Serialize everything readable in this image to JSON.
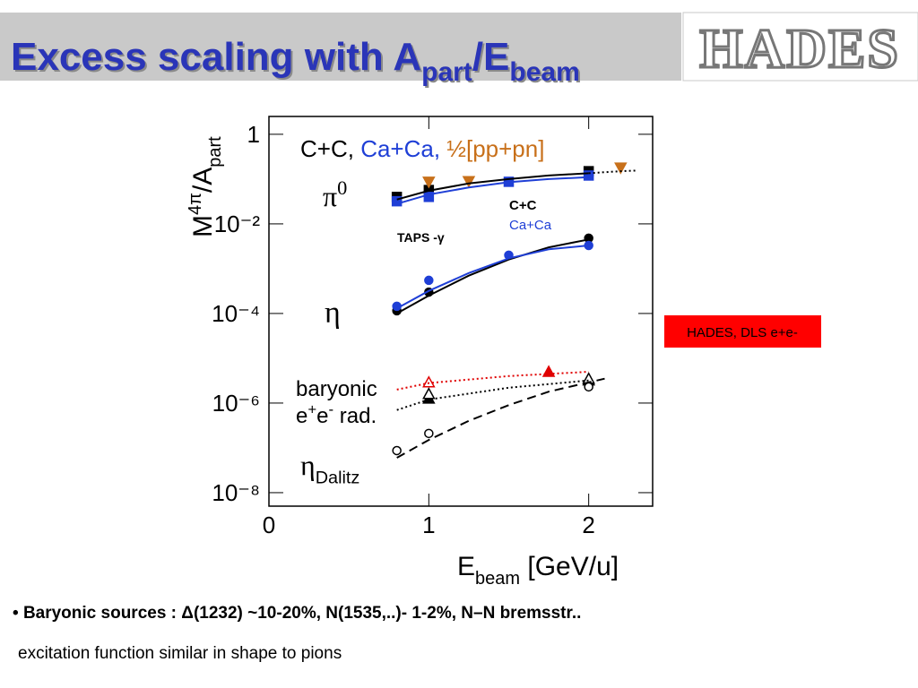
{
  "header": {
    "title_parts": [
      "Excess scaling with A",
      "part",
      "/E",
      "beam"
    ],
    "logo": "HADES"
  },
  "chart_data": {
    "type": "scatter",
    "log_y": true,
    "xlim": [
      0,
      2.4
    ],
    "ylim": [
      5e-09,
      2.5
    ],
    "xticks": [
      0,
      1,
      2
    ],
    "yticks": [
      1,
      {
        "value": 0.01,
        "label": "10⁻²"
      },
      {
        "value": 0.0001,
        "label": "10⁻⁴"
      },
      {
        "value": 1e-06,
        "label": "10⁻⁶"
      },
      {
        "value": 1e-08,
        "label": "10⁻⁸"
      }
    ],
    "x_label_parts": [
      "E",
      "beam",
      "  [GeV/u]"
    ],
    "y_label_parts": [
      "M",
      "4π",
      "/A",
      "part"
    ],
    "series": [
      {
        "x": [
          0.8,
          1,
          2
        ],
        "values": [
          0.04,
          0.057,
          0.15
        ],
        "color": "#000000",
        "marker": "square",
        "filled": true
      },
      {
        "x": [
          0.8,
          1,
          1.5,
          2
        ],
        "values": [
          0.032,
          0.04,
          0.087,
          0.12
        ],
        "color": "#1f3fd6",
        "marker": "square",
        "filled": true
      },
      {
        "x": [
          1,
          1.25,
          2.2
        ],
        "values": [
          0.087,
          0.09,
          0.18
        ],
        "color": "#c8701a",
        "marker": "triangle-down",
        "filled": true
      },
      {
        "x": [
          0.8,
          1,
          2
        ],
        "values": [
          0.000115,
          0.0003,
          0.0048
        ],
        "color": "#000000",
        "marker": "circle",
        "filled": true
      },
      {
        "x": [
          0.8,
          1,
          1.5,
          2
        ],
        "values": [
          0.000145,
          0.00055,
          0.002,
          0.0033
        ],
        "color": "#1f3fd6",
        "marker": "circle",
        "filled": true
      },
      {
        "x": [
          1,
          2
        ],
        "values": [
          1.26e-06,
          3.2e-06
        ],
        "color": "#000000",
        "marker": "triangle",
        "filled": true
      },
      {
        "x": [
          1,
          2
        ],
        "values": [
          1.6e-06,
          3.5e-06
        ],
        "color": "#000000",
        "marker": "triangle",
        "filled": false
      },
      {
        "x": [
          1
        ],
        "values": [
          2.9e-06
        ],
        "color": "#e00000",
        "marker": "triangle",
        "filled": false
      },
      {
        "x": [
          1.75
        ],
        "values": [
          5e-06
        ],
        "color": "#e00000",
        "marker": "triangle",
        "filled": true
      },
      {
        "x": [
          0.8,
          1,
          2
        ],
        "values": [
          8.7e-08,
          2.1e-07,
          2.3e-06
        ],
        "color": "#000000",
        "marker": "circle",
        "filled": false
      },
      {
        "x": [
          0.8,
          1,
          1.25,
          1.5,
          1.75,
          2
        ],
        "values": [
          0.035,
          0.055,
          0.08,
          0.1,
          0.12,
          0.135
        ],
        "color": "#000000",
        "line": "solid"
      },
      {
        "x": [
          2,
          2.2,
          2.3
        ],
        "values": [
          0.135,
          0.15,
          0.155
        ],
        "color": "#000000",
        "line": "dotted"
      },
      {
        "x": [
          0.8,
          1,
          1.25,
          1.5,
          1.75,
          2
        ],
        "values": [
          0.028,
          0.045,
          0.065,
          0.085,
          0.1,
          0.11
        ],
        "color": "#1f3fd6",
        "line": "solid"
      },
      {
        "x": [
          0.8,
          1,
          1.25,
          1.5,
          1.75,
          2
        ],
        "values": [
          0.0001,
          0.00025,
          0.0007,
          0.0016,
          0.003,
          0.0045
        ],
        "color": "#000000",
        "line": "solid"
      },
      {
        "x": [
          0.8,
          1,
          1.25,
          1.5,
          1.75,
          2
        ],
        "values": [
          0.00013,
          0.00032,
          0.0008,
          0.0017,
          0.0027,
          0.0033
        ],
        "color": "#1f3fd6",
        "line": "solid"
      },
      {
        "x": [
          0.8,
          1,
          1.5,
          2
        ],
        "values": [
          2e-06,
          2.8e-06,
          4e-06,
          5e-06
        ],
        "color": "#e00000",
        "line": "dotted"
      },
      {
        "x": [
          0.8,
          1,
          1.5,
          2
        ],
        "values": [
          7e-07,
          1.2e-06,
          2.2e-06,
          3.2e-06
        ],
        "color": "#000000",
        "line": "dotted"
      },
      {
        "x": [
          0.8,
          1,
          1.25,
          1.5,
          1.75,
          2.1
        ],
        "values": [
          6e-08,
          1.5e-07,
          4e-07,
          9e-07,
          1.8e-06,
          3.5e-06
        ],
        "color": "#000000",
        "line": "dashed"
      }
    ],
    "annotations": [
      {
        "segments": [
          {
            "text": "C+C, ",
            "color": "#000000"
          },
          {
            "text": "Ca+Ca, ",
            "color": "#1f3fd6"
          },
          {
            "text": "½[pp+pn]",
            "color": "#c8701a"
          }
        ]
      },
      {
        "segments": [
          {
            "text": "π"
          },
          {
            "text": "0",
            "shift": "super"
          }
        ],
        "serif": true
      },
      {
        "segments": [
          {
            "text": "C+C"
          }
        ],
        "bold": true
      },
      {
        "segments": [
          {
            "text": "Ca+Ca",
            "color": "#1f3fd6"
          }
        ]
      },
      {
        "segments": [
          {
            "text": "TAPS -γ"
          }
        ],
        "bold": true
      },
      {
        "segments": [
          {
            "text": "η"
          }
        ],
        "serif": true
      },
      {
        "segments": [
          {
            "text": "baryonic"
          }
        ]
      },
      {
        "segments": [
          {
            "text": "e"
          },
          {
            "text": "+",
            "shift": "super"
          },
          {
            "text": "e"
          },
          {
            "text": "-",
            "shift": "super"
          },
          {
            "text": " rad."
          }
        ]
      },
      {
        "segments": [
          {
            "text": "η",
            "serif": true
          },
          {
            "text": "Dalitz",
            "shift": "sub"
          }
        ]
      }
    ],
    "label_box": "HADES, DLS e+e-"
  },
  "bullets": [
    "Baryonic sources  :  Δ(1232) ~10-20%,  N(1535,..)- 1-2%,  N–N bremsstr..",
    "excitation function similar in shape to pions"
  ]
}
